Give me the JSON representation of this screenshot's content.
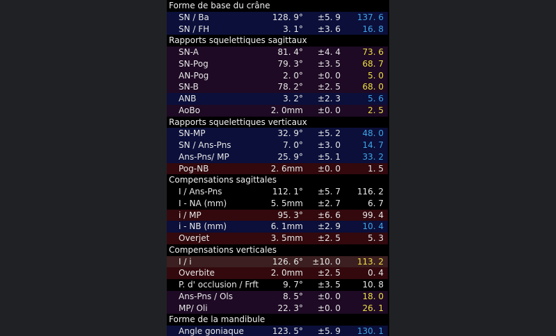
{
  "colors": {
    "navy": "#0b0f3a",
    "plum": "#1e0a24",
    "maroon": "#33090d",
    "rose": "#3c1f20",
    "value_normal": "#e8e8e8",
    "value_high": "#3fa7e8",
    "value_low": "#efe044"
  },
  "sections": [
    {
      "title": "Forme  de  base  du  crâne",
      "rows": [
        {
          "label": "SN  /  Ba",
          "value": "128. 9°",
          "sd": "±5. 9",
          "patient": "137. 6",
          "bg": "navy",
          "color": "cyan"
        },
        {
          "label": "SN  /  FH",
          "value": "3. 1°",
          "sd": "±3. 6",
          "patient": "16. 8",
          "bg": "navy",
          "color": "cyan"
        }
      ]
    },
    {
      "title": "Rapports  squelettiques  sagittaux",
      "rows": [
        {
          "label": "SN-A",
          "value": "81. 4°",
          "sd": "±4. 4",
          "patient": "73. 6",
          "bg": "plum",
          "color": "yellow"
        },
        {
          "label": "SN-Pog",
          "value": "79. 3°",
          "sd": "±3. 5",
          "patient": "68. 7",
          "bg": "plum",
          "color": "yellow"
        },
        {
          "label": "AN-Pog",
          "value": "2. 0°",
          "sd": "±0. 0",
          "patient": "5. 0",
          "bg": "plum",
          "color": "yellow"
        },
        {
          "label": "SN-B",
          "value": "78. 2°",
          "sd": "±2. 5",
          "patient": "68. 0",
          "bg": "plum",
          "color": "yellow"
        },
        {
          "label": "ANB",
          "value": "3. 2°",
          "sd": "±2. 3",
          "patient": "5. 6",
          "bg": "navy",
          "color": "cyan"
        },
        {
          "label": "AoBo",
          "value": "2. 0mm",
          "sd": "±0. 0",
          "patient": "2. 5",
          "bg": "plum",
          "color": "yellow"
        }
      ]
    },
    {
      "title": "Rapports  squelettiques  verticaux",
      "rows": [
        {
          "label": "SN-MP",
          "value": "32. 9°",
          "sd": "±5. 2",
          "patient": "48. 0",
          "bg": "navy",
          "color": "cyan"
        },
        {
          "label": "SN  /  Ans-Pns",
          "value": "7. 0°",
          "sd": "±3. 0",
          "patient": "14. 7",
          "bg": "navy",
          "color": "cyan"
        },
        {
          "label": "Ans-Pns/ MP",
          "value": "25. 9°",
          "sd": "±5. 1",
          "patient": "33. 2",
          "bg": "navy",
          "color": "cyan"
        },
        {
          "label": "Pog-NB",
          "value": "2. 6mm",
          "sd": "±0. 0",
          "patient": "1. 5",
          "bg": "maroon",
          "color": "white"
        }
      ]
    },
    {
      "title": "Compensations  sagittales",
      "rows": [
        {
          "label": "I  /  Ans-Pns",
          "value": "112. 1°",
          "sd": "±5. 7",
          "patient": "116. 2",
          "bg": "none",
          "color": "white"
        },
        {
          "label": "I  -  NA  (mm)",
          "value": "5. 5mm",
          "sd": "±2. 7",
          "patient": "6. 7",
          "bg": "none",
          "color": "white"
        },
        {
          "label": "i  /  MP",
          "value": "95. 3°",
          "sd": "±6. 6",
          "patient": "99. 4",
          "bg": "maroon",
          "color": "white"
        },
        {
          "label": "i  -  NB  (mm)",
          "value": "6. 1mm",
          "sd": "±2. 9",
          "patient": "10. 4",
          "bg": "navy",
          "color": "cyan"
        },
        {
          "label": "Overjet",
          "value": "3. 5mm",
          "sd": "±2. 5",
          "patient": "5. 3",
          "bg": "maroon",
          "color": "white"
        }
      ]
    },
    {
      "title": "Compensations  verticales",
      "rows": [
        {
          "label": "I  /  i",
          "value": "126. 6°",
          "sd": "±10. 0",
          "patient": "113. 2",
          "bg": "rose",
          "color": "yellow"
        },
        {
          "label": "Overbite",
          "value": "2. 0mm",
          "sd": "±2. 5",
          "patient": "0. 4",
          "bg": "maroon",
          "color": "white"
        },
        {
          "label": "P. d' occlusion  /  Frft",
          "value": "9. 7°",
          "sd": "±3. 5",
          "patient": "10. 8",
          "bg": "none",
          "color": "white"
        },
        {
          "label": "Ans-Pns  /  Ols",
          "value": "8. 5°",
          "sd": "±0. 0",
          "patient": "18. 0",
          "bg": "plum",
          "color": "yellow"
        },
        {
          "label": "MP/ Oli",
          "value": "22. 3°",
          "sd": "±0. 0",
          "patient": "26. 1",
          "bg": "plum",
          "color": "yellow"
        }
      ]
    },
    {
      "title": "Forme  de  la  mandibule",
      "rows": [
        {
          "label": "Angle  goniaque",
          "value": "123. 5°",
          "sd": "±5. 9",
          "patient": "130. 1",
          "bg": "navy",
          "color": "cyan"
        }
      ]
    }
  ]
}
